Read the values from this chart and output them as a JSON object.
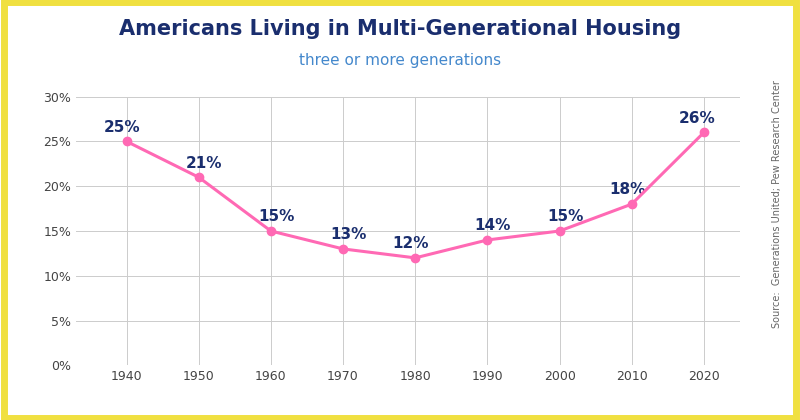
{
  "title": "Americans Living in Multi-Generational Housing",
  "subtitle": "three or more generations",
  "source_text": "Source:  Generations United; Pew Research Center",
  "years": [
    1940,
    1950,
    1960,
    1970,
    1980,
    1990,
    2000,
    2010,
    2020
  ],
  "values": [
    25,
    21,
    15,
    13,
    12,
    14,
    15,
    18,
    26
  ],
  "labels": [
    "25%",
    "21%",
    "15%",
    "13%",
    "12%",
    "14%",
    "15%",
    "18%",
    "26%"
  ],
  "line_color": "#FF69B4",
  "marker_color": "#FF69B4",
  "title_color": "#1a2e6e",
  "subtitle_color": "#4488cc",
  "label_color": "#1a2e6e",
  "grid_color": "#cccccc",
  "bg_color": "#ffffff",
  "border_color": "#f0e040",
  "ylim": [
    0,
    30
  ],
  "yticks": [
    0,
    5,
    10,
    15,
    20,
    25,
    30
  ],
  "ytick_labels": [
    "0%",
    "5%",
    "10%",
    "15%",
    "20%",
    "25%",
    "30%"
  ],
  "title_fontsize": 15,
  "subtitle_fontsize": 11,
  "label_fontsize": 11,
  "tick_fontsize": 9,
  "source_fontsize": 7
}
